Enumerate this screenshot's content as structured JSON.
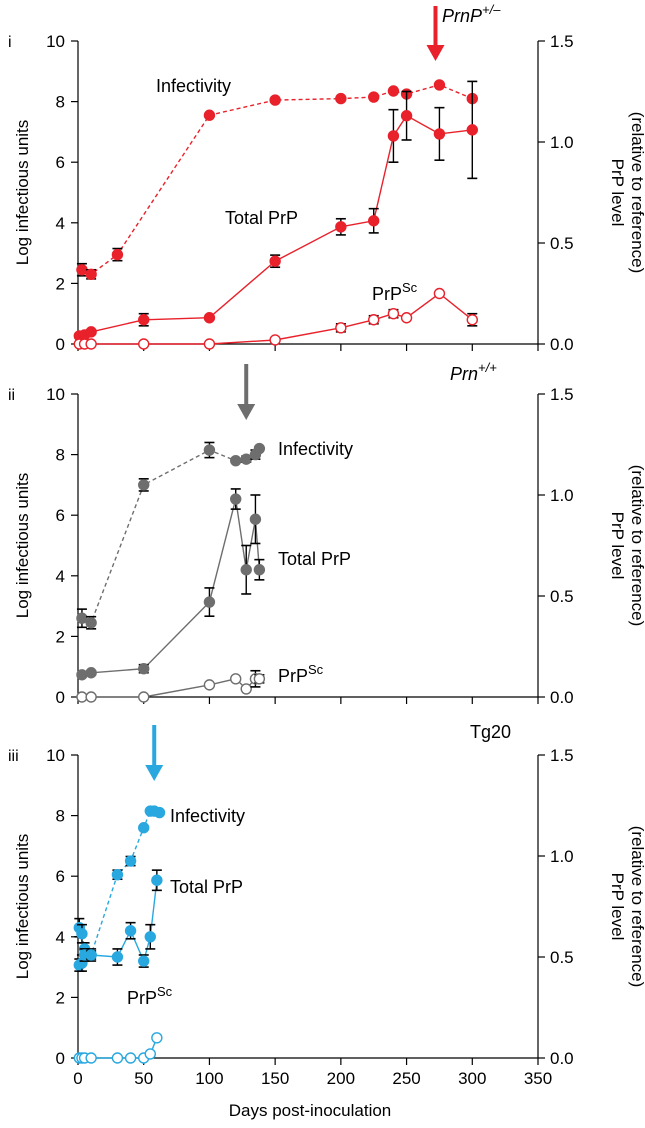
{
  "figure": {
    "x_axis_label": "Days post-inoculation",
    "x_ticks": [
      0,
      50,
      100,
      150,
      200,
      250,
      300,
      350
    ],
    "y_left_label": "Log infectious units",
    "y_right_label_line1": "PrP level",
    "y_right_label_line2": "(relative to reference)"
  },
  "chart_data": [
    {
      "type": "line",
      "panel_label": "i",
      "genotype_label": "PrnP+/–",
      "genotype_base": "PrnP",
      "genotype_sup": "+/–",
      "accent_color": "#e8212b",
      "arrow_day": 272,
      "xlim": [
        0,
        350
      ],
      "ylim_left": [
        0,
        10
      ],
      "yticks_left": [
        0,
        2,
        4,
        6,
        8,
        10
      ],
      "ylim_right": [
        0,
        1.5
      ],
      "yticks_right": [
        "0.0",
        "0.5",
        "1.0",
        "1.5"
      ],
      "series": [
        {
          "name": "Infectivity",
          "axis": "left",
          "style": "dashed",
          "marker": "filled",
          "label_base": "Infectivity",
          "label_sup": "",
          "x": [
            3,
            10,
            30,
            100,
            150,
            200,
            225,
            240,
            250,
            275,
            300
          ],
          "y": [
            2.45,
            2.3,
            2.95,
            7.55,
            8.05,
            8.1,
            8.15,
            8.35,
            8.25,
            8.55,
            8.1
          ],
          "err": [
            0.2,
            0.15,
            0.2,
            0,
            0,
            0,
            0,
            0,
            0,
            0,
            0
          ]
        },
        {
          "name": "Total PrP",
          "axis": "right",
          "style": "solid",
          "marker": "filled",
          "label_base": "Total PrP",
          "label_sup": "",
          "x": [
            1,
            5,
            10,
            50,
            100,
            150,
            200,
            225,
            240,
            250,
            275,
            300
          ],
          "y": [
            0.04,
            0.045,
            0.06,
            0.12,
            0.13,
            0.41,
            0.58,
            0.61,
            1.03,
            1.13,
            1.04,
            1.06
          ],
          "err": [
            0.01,
            0.01,
            0.01,
            0.03,
            0.0,
            0.03,
            0.04,
            0.06,
            0.13,
            0.12,
            0.13,
            0.24
          ]
        },
        {
          "name": "PrPSc",
          "axis": "right",
          "style": "solid",
          "marker": "open",
          "label_base": "PrP",
          "label_sup": "Sc",
          "x": [
            1,
            5,
            10,
            50,
            100,
            150,
            200,
            225,
            240,
            250,
            275,
            300
          ],
          "y": [
            0,
            0,
            0,
            0,
            0,
            0.02,
            0.08,
            0.12,
            0.15,
            0.13,
            0.25,
            0.12
          ],
          "err": [
            0,
            0,
            0,
            0,
            0,
            0,
            0.02,
            0.02,
            0.02,
            0,
            0,
            0.03
          ]
        }
      ]
    },
    {
      "type": "line",
      "panel_label": "ii",
      "genotype_label": "Prn+/+",
      "genotype_base": "Prn",
      "genotype_sup": "+/+",
      "accent_color": "#6e6e6e",
      "arrow_day": 128,
      "xlim": [
        0,
        350
      ],
      "ylim_left": [
        0,
        10
      ],
      "yticks_left": [
        0,
        2,
        4,
        6,
        8,
        10
      ],
      "ylim_right": [
        0,
        1.5
      ],
      "yticks_right": [
        "0.0",
        "0.5",
        "1.0",
        "1.5"
      ],
      "series": [
        {
          "name": "Infectivity",
          "axis": "left",
          "style": "dashed",
          "marker": "filled",
          "label_base": "Infectivity",
          "label_sup": "",
          "x": [
            3,
            10,
            50,
            100,
            120,
            128,
            135,
            138
          ],
          "y": [
            2.6,
            2.45,
            7.0,
            8.15,
            7.8,
            7.85,
            8.0,
            8.2
          ],
          "err": [
            0.3,
            0.2,
            0.2,
            0.25,
            0,
            0.1,
            0.15,
            0
          ]
        },
        {
          "name": "Total PrP",
          "axis": "right",
          "style": "solid",
          "marker": "filled",
          "label_base": "Total PrP",
          "label_sup": "",
          "x": [
            3,
            10,
            50,
            100,
            120,
            128,
            135,
            138
          ],
          "y": [
            0.11,
            0.12,
            0.14,
            0.47,
            0.98,
            0.63,
            0.88,
            0.63
          ],
          "err": [
            0.01,
            0.01,
            0.02,
            0.07,
            0.05,
            0.12,
            0.12,
            0.05
          ]
        },
        {
          "name": "PrPSc",
          "axis": "right",
          "style": "solid",
          "marker": "open",
          "label_base": "PrP",
          "label_sup": "Sc",
          "x": [
            3,
            10,
            50,
            100,
            120,
            128,
            135,
            138
          ],
          "y": [
            0,
            0,
            0,
            0.06,
            0.09,
            0.04,
            0.09,
            0.09
          ],
          "err": [
            0,
            0,
            0,
            0,
            0,
            0,
            0.04,
            0.02
          ]
        }
      ]
    },
    {
      "type": "line",
      "panel_label": "iii",
      "genotype_label": "Tg20",
      "genotype_base": "Tg20",
      "genotype_sup": "",
      "accent_color": "#29a8e0",
      "arrow_day": 58,
      "xlim": [
        0,
        350
      ],
      "ylim_left": [
        0,
        10
      ],
      "yticks_left": [
        0,
        2,
        4,
        6,
        8,
        10
      ],
      "ylim_right": [
        0,
        1.5
      ],
      "yticks_right": [
        "0.0",
        "0.5",
        "1.0",
        "1.5"
      ],
      "series": [
        {
          "name": "Infectivity",
          "axis": "left",
          "style": "dashed",
          "marker": "filled",
          "label_base": "Infectivity",
          "label_sup": "",
          "x": [
            1,
            3,
            5,
            10,
            30,
            40,
            50,
            55,
            58,
            62
          ],
          "y": [
            4.3,
            4.1,
            3.6,
            3.4,
            6.05,
            6.5,
            7.6,
            8.15,
            8.15,
            8.1
          ],
          "err": [
            0.3,
            0.3,
            0.2,
            0.2,
            0.15,
            0.15,
            0,
            0,
            0,
            0
          ]
        },
        {
          "name": "Total PrP",
          "axis": "right",
          "style": "solid",
          "marker": "filled",
          "label_base": "Total PrP",
          "label_sup": "",
          "x": [
            1,
            3,
            5,
            10,
            30,
            40,
            50,
            55,
            60
          ],
          "y": [
            0.46,
            0.47,
            0.51,
            0.51,
            0.5,
            0.63,
            0.48,
            0.6,
            0.88
          ],
          "err": [
            0.03,
            0.04,
            0.03,
            0.02,
            0.04,
            0.04,
            0.03,
            0.06,
            0.05
          ]
        },
        {
          "name": "PrPSc",
          "axis": "right",
          "style": "solid",
          "marker": "open",
          "label_base": "PrP",
          "label_sup": "Sc",
          "x": [
            1,
            3,
            5,
            10,
            30,
            40,
            50,
            55,
            60
          ],
          "y": [
            0,
            0,
            0,
            0,
            0,
            0,
            0,
            0.02,
            0.1
          ],
          "err": [
            0,
            0,
            0,
            0,
            0,
            0,
            0,
            0,
            0
          ]
        }
      ]
    }
  ]
}
